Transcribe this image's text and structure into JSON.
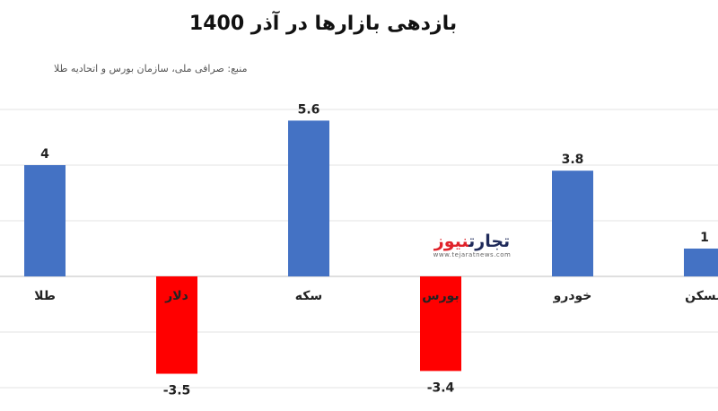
{
  "chart_data": {
    "type": "bar",
    "title": "بازدهی بازارها در آذر 1400",
    "source": "منبع: صرافی ملی، سازمان بورس و اتحادیه طلا",
    "categories": [
      "طلا",
      "دلار",
      "سکه",
      "بورس",
      "خودرو",
      "مسکن"
    ],
    "values": [
      4,
      -3.5,
      5.6,
      -3.4,
      3.8,
      1
    ],
    "value_labels": [
      "4",
      "-3.5",
      "5.6",
      "-3.4",
      "3.8",
      "1"
    ],
    "ylim": [
      -4,
      6
    ],
    "grid": true,
    "legend": "none",
    "colors": {
      "positive": "#4472c4",
      "negative": "#ff0000"
    }
  },
  "watermark": {
    "name_part1": "تجارت",
    "name_part2": "نیوز",
    "url": "www.tejaratnews.com"
  }
}
